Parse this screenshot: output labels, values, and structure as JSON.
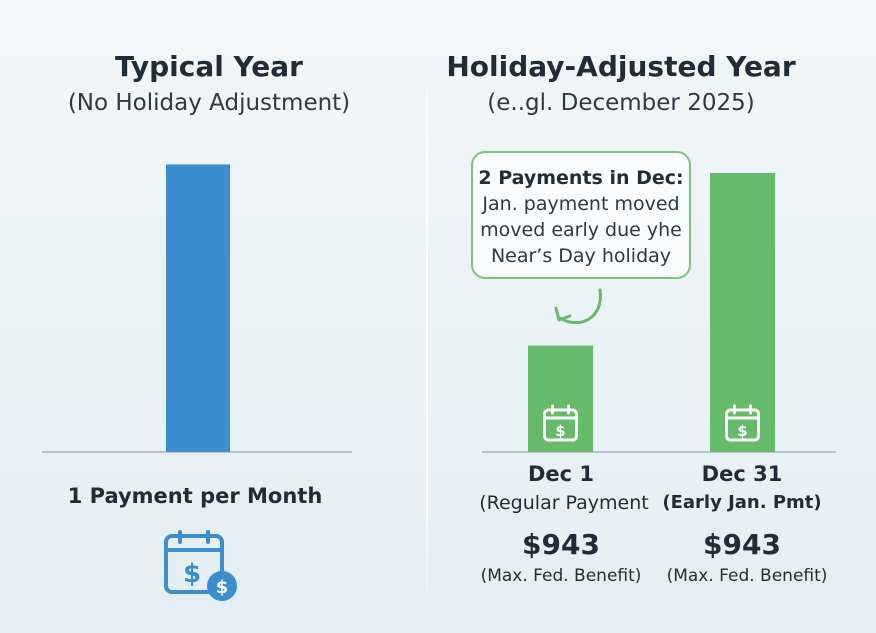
{
  "colors": {
    "blue": "#3b8ed0",
    "green": "#66bb6a",
    "green_dark": "#4caf50",
    "axis": "#b9c4cc",
    "text": "#1f2d3a"
  },
  "left": {
    "title": "Typical Year",
    "subtitle": "(No Holiday Adjustment)",
    "footer": "1 Payment per Month",
    "icon": "calendar-dollar-icon"
  },
  "right": {
    "title": "Holiday-Adjusted Year",
    "subtitle": "(e..gl. December 2025)",
    "callout": {
      "heading": "2 Payments in Dec:",
      "lines": [
        "Jan. payment moved",
        "moved early due yhe",
        "Near’s Day holiday"
      ]
    },
    "bars": [
      {
        "label": "Dec 1",
        "sub": "(Regular Payment",
        "amount": "$943",
        "note": "(Max. Fed. Benefit)",
        "icon": "calendar-dollar-icon"
      },
      {
        "label": "Dec 31",
        "sub": "(Early Jan. Pmt)",
        "amount": "$943",
        "note": "(Max. Fed. Benefit)",
        "icon": "calendar-dollar-icon"
      }
    ]
  },
  "chart_data": [
    {
      "type": "bar",
      "title": "Typical Year",
      "subtitle": "(No Holiday Adjustment)",
      "categories": [
        ""
      ],
      "values": [
        1
      ],
      "ylim": [
        0,
        1.05
      ],
      "color": "#3b8ed0",
      "grid": false
    },
    {
      "type": "bar",
      "title": "Holiday-Adjusted Year",
      "subtitle": "(e..gl. December 2025)",
      "categories": [
        "Dec 1",
        "Dec 31"
      ],
      "values": [
        0.37,
        0.97
      ],
      "ylim": [
        0,
        1.05
      ],
      "color": "#66bb6a",
      "grid": false
    }
  ]
}
